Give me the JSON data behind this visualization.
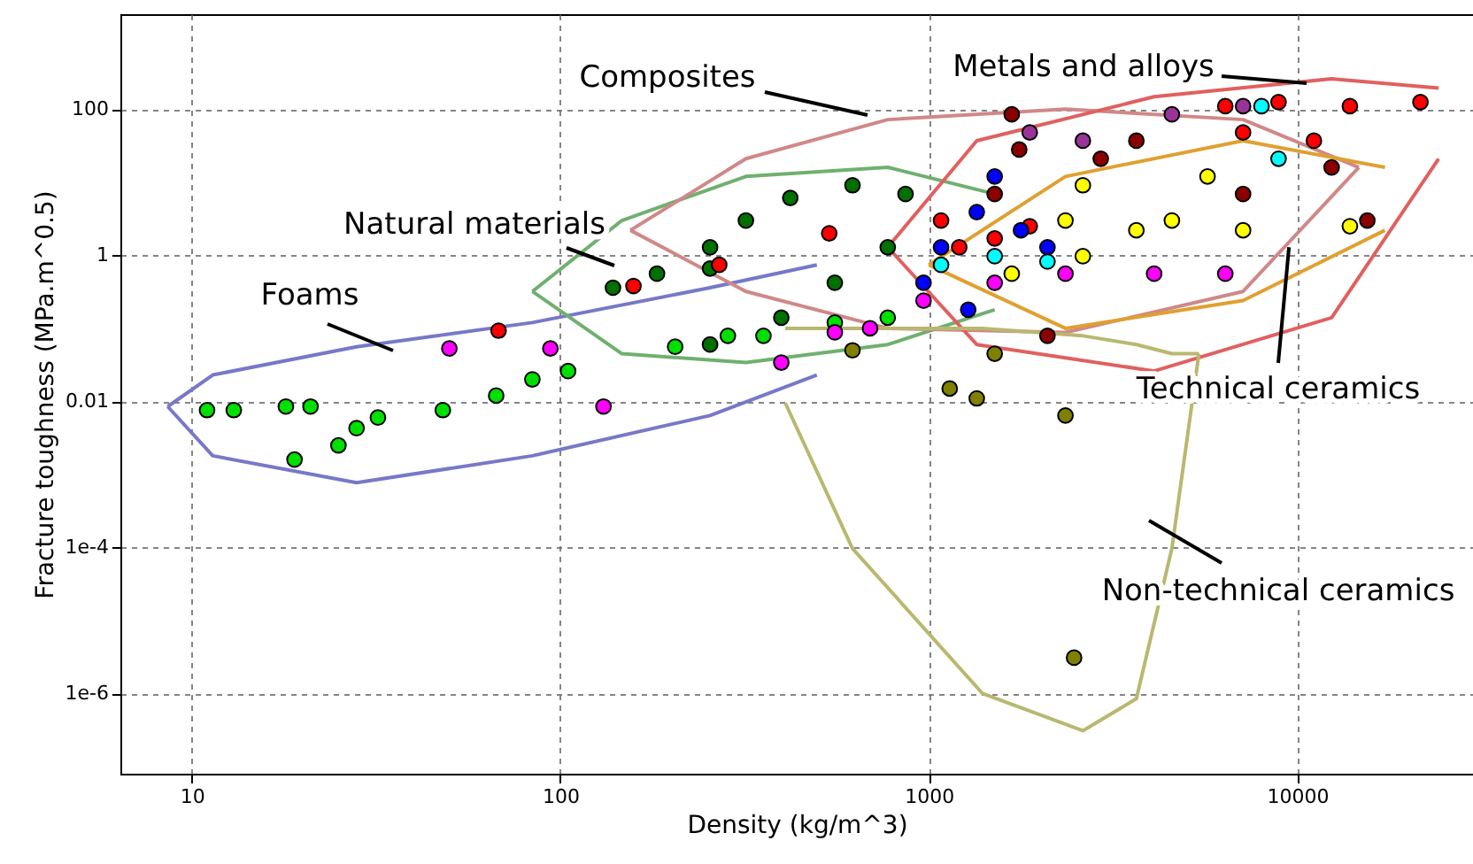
{
  "chart_data": {
    "type": "scatter",
    "xlabel": "Density (kg/m^3)",
    "ylabel": "Fracture toughness (MPa.m^0.5)",
    "log": "xy",
    "grid": true,
    "marker": "circle",
    "xlim": [
      6.4,
      30000
    ],
    "xticks": [
      10,
      100,
      1000,
      10000
    ],
    "ylim": [
      8e-08,
      2000
    ],
    "yticks": [
      100,
      1,
      0.01,
      {
        "value": 0.0001,
        "label": "1e-4"
      },
      {
        "value": 1e-06,
        "label": "1e-6"
      }
    ],
    "series": [
      {
        "type": "line",
        "marker": "none",
        "color": "#7878c8",
        "x": [
          8.6,
          11.4,
          28,
          84,
          255,
          497
        ],
        "values": [
          0.0085,
          0.023,
          0.056,
          0.12,
          0.36,
          0.74
        ]
      },
      {
        "type": "line",
        "marker": "none",
        "color": "#7878c8",
        "x": [
          8.6,
          11.4,
          28,
          84,
          255,
          497
        ],
        "values": [
          0.0085,
          0.0018,
          0.00077,
          0.0018,
          0.0064,
          0.023
        ]
      },
      {
        "type": "line",
        "marker": "none",
        "color": "#6fb06f",
        "x": [
          84,
          147,
          319,
          774,
          1510
        ],
        "values": [
          0.32,
          3,
          12,
          16,
          6.9
        ]
      },
      {
        "type": "line",
        "marker": "none",
        "color": "#6fb06f",
        "x": [
          84,
          147,
          319,
          774,
          1510
        ],
        "values": [
          0.32,
          0.045,
          0.034,
          0.06,
          0.18
        ]
      },
      {
        "type": "line",
        "marker": "none",
        "color": "#d08888",
        "x": [
          155,
          319,
          774,
          2350,
          7130,
          14700
        ],
        "values": [
          2.2,
          21,
          72,
          100,
          72,
          16
        ]
      },
      {
        "type": "line",
        "marker": "none",
        "color": "#d08888",
        "x": [
          155,
          319,
          774,
          2350,
          7130,
          14700
        ],
        "values": [
          2.2,
          0.32,
          0.1,
          0.088,
          0.32,
          16
        ]
      },
      {
        "type": "line",
        "marker": "none",
        "color": "#e06060",
        "x": [
          774,
          1350,
          4090,
          12400,
          24200
        ],
        "values": [
          1.29,
          37,
          148,
          260,
          195
        ]
      },
      {
        "type": "line",
        "marker": "none",
        "color": "#e06060",
        "x": [
          774,
          1350,
          4090,
          12400,
          24200
        ],
        "values": [
          1.29,
          0.06,
          0.026,
          0.14,
          21
        ]
      },
      {
        "type": "line",
        "marker": "none",
        "color": "#e0a030",
        "x": [
          1000,
          2350,
          7130,
          17300
        ],
        "values": [
          0.74,
          12,
          37,
          16
        ]
      },
      {
        "type": "line",
        "marker": "none",
        "color": "#e0a030",
        "x": [
          1000,
          2350,
          7130,
          17300
        ],
        "values": [
          0.74,
          0.1,
          0.24,
          2.2
        ]
      },
      {
        "type": "line",
        "marker": "none",
        "color": "#b8b870",
        "x": [
          408,
          621,
          1400,
          2620,
          3660,
          4570,
          5410
        ],
        "values": [
          0.1,
          0.1,
          0.1,
          0.079,
          0.06,
          0.045,
          0.045
        ]
      },
      {
        "type": "line",
        "marker": "none",
        "color": "#b8b870",
        "x": [
          408,
          621,
          1400,
          2620,
          3660,
          4570,
          5410
        ],
        "values": [
          0.0095,
          9.7e-05,
          1e-06,
          3.1e-07,
          8.5e-07,
          9.7e-05,
          0.045
        ]
      },
      {
        "color": "#00e000",
        "x": [
          11,
          13,
          18,
          21,
          28,
          32,
          48,
          67,
          84,
          105,
          205,
          285,
          356,
          556,
          774,
          19,
          25
        ],
        "values": [
          0.0076,
          0.0076,
          0.0085,
          0.0085,
          0.0043,
          0.006,
          0.0076,
          0.012,
          0.02,
          0.026,
          0.056,
          0.079,
          0.079,
          0.12,
          0.14,
          0.0016,
          0.0025
        ]
      },
      {
        "color": "#007000",
        "x": [
          139,
          183,
          255,
          255,
          319,
          421,
          621,
          865,
          774,
          556,
          255,
          398
        ],
        "values": [
          0.36,
          0.56,
          1.29,
          0.66,
          3,
          6.1,
          9.1,
          6.9,
          1.29,
          0.42,
          0.06,
          0.14
        ]
      },
      {
        "color": "#ff00ff",
        "x": [
          50,
          94,
          131,
          398,
          556,
          693,
          968,
          1510,
          2350,
          4090,
          6380
        ],
        "values": [
          0.053,
          0.053,
          0.0085,
          0.034,
          0.088,
          0.1,
          0.24,
          0.42,
          0.56,
          0.56,
          0.56
        ]
      },
      {
        "color": "#ff0000",
        "x": [
          68,
          158,
          270,
          537,
          1080,
          1210,
          1510,
          1880,
          6380,
          8900,
          13900,
          21600,
          11100,
          7130
        ],
        "values": [
          0.093,
          0.38,
          0.74,
          2,
          3,
          1.29,
          1.7,
          2.5,
          110,
          125,
          110,
          125,
          37,
          48
        ]
      },
      {
        "color": "#8b0000",
        "x": [
          1680,
          1760,
          1510,
          2930,
          3660,
          7130,
          12400,
          15500,
          2100
        ],
        "values": [
          85,
          28,
          6.9,
          21,
          37,
          6.9,
          16,
          3,
          0.079
        ]
      },
      {
        "color": "#0000ff",
        "x": [
          968,
          1080,
          1350,
          1510,
          1780,
          2100,
          1280
        ],
        "values": [
          0.42,
          1.29,
          3.9,
          12,
          2.2,
          1.29,
          0.18
        ]
      },
      {
        "color": "#00ffff",
        "x": [
          1080,
          1510,
          2100,
          8000,
          8900
        ],
        "values": [
          0.74,
          0.97,
          0.82,
          110,
          21
        ]
      },
      {
        "color": "#ffff00",
        "x": [
          1680,
          2350,
          2620,
          3660,
          4570,
          5710,
          7130,
          13900,
          2620
        ],
        "values": [
          0.56,
          3,
          9.1,
          2.2,
          3,
          12,
          2.2,
          2.5,
          0.97
        ]
      },
      {
        "color": "#993399",
        "x": [
          1880,
          2620,
          4570,
          7130
        ],
        "values": [
          48,
          37,
          85,
          110
        ]
      },
      {
        "color": "#808000",
        "x": [
          621,
          1510,
          1140,
          1350,
          2350,
          2480
        ],
        "values": [
          0.05,
          0.045,
          0.015,
          0.011,
          0.0064,
          3.1e-06
        ]
      }
    ],
    "annotations": [
      "Foams",
      "Natural materials",
      "Composites",
      "Metals and alloys",
      {
        "text": "Technical ceramics",
        "x": 9500,
        "y": 1.29
      },
      "Non-technical ceramics"
    ]
  }
}
